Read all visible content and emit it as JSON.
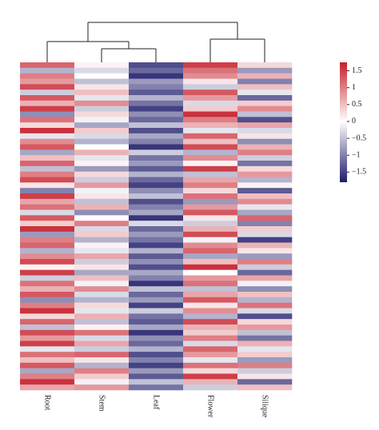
{
  "chart_data": {
    "type": "heatmap",
    "categories": [
      "Root",
      "Stem",
      "Leaf",
      "Flower",
      "Silique"
    ],
    "colormap": [
      "#1f1c6b",
      "#ffffff",
      "#c61f2a"
    ],
    "clim": [
      -1.8,
      1.75
    ],
    "cticks": [
      {
        "value": 1.5,
        "label": "1.5"
      },
      1,
      {
        "value": 0.5,
        "label": "0.5"
      },
      0,
      {
        "value": -0.5,
        "label": "−0.5"
      },
      {
        "value": -1,
        "label": "−1"
      },
      {
        "value": -1.5,
        "label": "−1.5"
      }
    ],
    "z": [
      [
        1.2,
        0.1,
        -1.4,
        1.5,
        0.3
      ],
      [
        -0.6,
        -0.3,
        -1.2,
        1.1,
        -0.8
      ],
      [
        1.0,
        0.0,
        -1.6,
        0.9,
        0.6
      ],
      [
        0.8,
        -0.5,
        -0.8,
        0.2,
        -1.0
      ],
      [
        1.4,
        0.2,
        -1.0,
        -0.4,
        0.5
      ],
      [
        -0.4,
        0.5,
        -1.3,
        1.3,
        -0.2
      ],
      [
        1.3,
        -0.2,
        -0.6,
        0.8,
        -1.2
      ],
      [
        0.6,
        0.9,
        -1.1,
        -0.3,
        0.4
      ],
      [
        1.5,
        -0.4,
        -1.5,
        0.4,
        0.9
      ],
      [
        -0.9,
        0.3,
        -0.9,
        1.6,
        -0.5
      ],
      [
        1.1,
        -0.1,
        -1.2,
        1.0,
        -1.4
      ],
      [
        0.3,
        -0.7,
        -0.5,
        0.6,
        0.7
      ],
      [
        1.6,
        0.4,
        -1.4,
        -0.2,
        -0.3
      ],
      [
        -0.2,
        -0.3,
        -0.7,
        1.2,
        0.2
      ],
      [
        0.9,
        -0.6,
        -1.0,
        0.5,
        -0.9
      ],
      [
        1.3,
        0.0,
        -1.6,
        1.4,
        0.6
      ],
      [
        -0.7,
        0.6,
        -0.4,
        -0.6,
        1.0
      ],
      [
        0.5,
        -0.2,
        -1.1,
        0.9,
        -0.4
      ],
      [
        1.2,
        0.1,
        -0.8,
        0.1,
        -1.1
      ],
      [
        -0.5,
        -0.8,
        -1.3,
        1.5,
        0.3
      ],
      [
        1.0,
        0.3,
        -0.6,
        -0.5,
        0.8
      ],
      [
        1.4,
        -0.4,
        -1.2,
        0.7,
        -0.6
      ],
      [
        0.2,
        0.8,
        -1.5,
        1.0,
        0.1
      ],
      [
        -1.0,
        -0.1,
        -0.9,
        0.3,
        -1.3
      ],
      [
        1.5,
        0.2,
        -0.5,
        1.1,
        0.5
      ],
      [
        0.7,
        -0.5,
        -1.4,
        -0.8,
        0.9
      ],
      [
        1.1,
        0.6,
        -1.0,
        0.8,
        -0.2
      ],
      [
        -0.3,
        -0.9,
        -0.7,
        1.3,
        -0.7
      ],
      [
        1.3,
        0.0,
        -1.6,
        0.2,
        1.2
      ],
      [
        0.4,
        1.0,
        -0.3,
        -0.4,
        -1.0
      ],
      [
        1.6,
        -0.3,
        -1.2,
        0.6,
        0.4
      ],
      [
        -0.8,
        0.4,
        -0.8,
        1.4,
        -0.3
      ],
      [
        1.0,
        -0.6,
        -1.1,
        -0.1,
        -1.5
      ],
      [
        1.2,
        0.1,
        -1.5,
        0.9,
        0.6
      ],
      [
        -0.6,
        -0.2,
        -0.6,
        1.2,
        0.2
      ],
      [
        0.9,
        0.7,
        -1.3,
        -0.7,
        -0.8
      ],
      [
        1.4,
        -0.4,
        -0.9,
        0.5,
        1.0
      ],
      [
        0.1,
        0.2,
        -1.4,
        1.6,
        -0.4
      ],
      [
        1.5,
        -0.7,
        -0.7,
        0.0,
        -1.2
      ],
      [
        -0.4,
        0.5,
        -1.0,
        0.8,
        0.7
      ],
      [
        1.1,
        -0.1,
        -1.6,
        1.1,
        -0.1
      ],
      [
        0.6,
        0.9,
        -0.5,
        -0.5,
        -0.9
      ],
      [
        1.3,
        -0.3,
        -1.2,
        0.7,
        0.5
      ],
      [
        -0.9,
        -0.6,
        -0.8,
        1.3,
        -0.6
      ],
      [
        1.0,
        0.3,
        -1.5,
        0.2,
        1.1
      ],
      [
        1.6,
        -0.2,
        -0.4,
        0.9,
        -0.3
      ],
      [
        0.3,
        0.6,
        -1.1,
        -0.6,
        -1.4
      ],
      [
        1.2,
        -0.5,
        -1.3,
        1.4,
        0.3
      ],
      [
        -0.5,
        0.1,
        -0.7,
        0.6,
        0.8
      ],
      [
        1.4,
        1.1,
        -1.6,
        0.4,
        -0.5
      ],
      [
        0.8,
        -0.3,
        -0.9,
        1.0,
        -1.1
      ],
      [
        1.5,
        0.7,
        -1.2,
        -0.3,
        0.6
      ],
      [
        -0.2,
        -0.4,
        -0.6,
        1.2,
        -0.2
      ],
      [
        1.1,
        1.2,
        -1.4,
        0.8,
        0.4
      ],
      [
        0.5,
        0.2,
        -1.0,
        -0.2,
        -0.8
      ],
      [
        1.3,
        -0.6,
        -1.5,
        1.1,
        1.0
      ],
      [
        -0.7,
        1.0,
        -0.8,
        0.3,
        -0.4
      ],
      [
        1.0,
        0.4,
        -1.3,
        1.5,
        0.2
      ],
      [
        1.6,
        -0.1,
        -0.5,
        0.6,
        -1.2
      ],
      [
        0.7,
        0.8,
        -1.1,
        -0.4,
        0.5
      ]
    ]
  }
}
